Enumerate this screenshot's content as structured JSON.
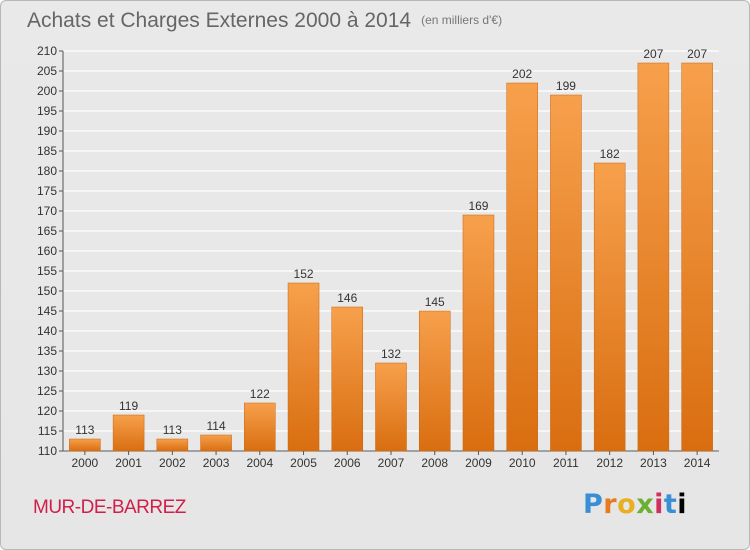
{
  "header": {
    "title": "Achats et Charges Externes 2000 à 2014",
    "unit": "(en milliers d'€)"
  },
  "footer": {
    "location": "MUR-DE-BARREZ",
    "logo": "Proxiti"
  },
  "colors": {
    "bar_light": "#f7a04c",
    "bar_dark": "#d96e10",
    "grid": "#ffffff",
    "axis_text": "#333333"
  },
  "chart_data": {
    "type": "bar",
    "categories": [
      "2000",
      "2001",
      "2002",
      "2003",
      "2004",
      "2005",
      "2006",
      "2007",
      "2008",
      "2009",
      "2010",
      "2011",
      "2012",
      "2013",
      "2014"
    ],
    "values": [
      113,
      119,
      113,
      114,
      122,
      152,
      146,
      132,
      145,
      169,
      202,
      199,
      182,
      207,
      207
    ],
    "title": "Achats et Charges Externes 2000 à 2014",
    "xlabel": "",
    "ylabel": "",
    "ylim": [
      110,
      210
    ],
    "yticks": [
      110,
      115,
      120,
      125,
      130,
      135,
      140,
      145,
      150,
      155,
      160,
      165,
      170,
      175,
      180,
      185,
      190,
      195,
      200,
      205,
      210
    ],
    "grid": true
  }
}
